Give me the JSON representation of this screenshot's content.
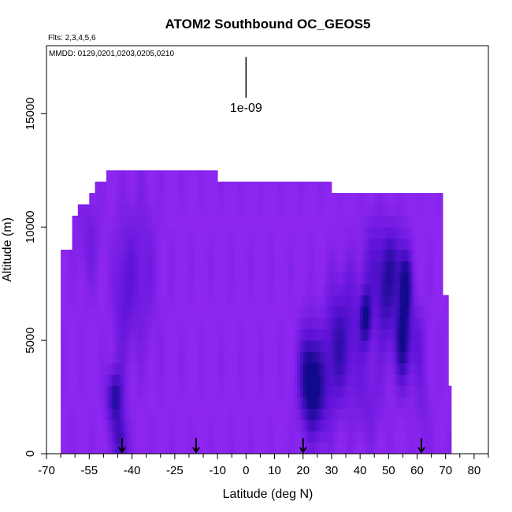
{
  "chart_data": {
    "type": "heatmap",
    "title": "ATOM2 Southbound OC_GEOS5",
    "annotations": {
      "flights": "Flts: 2,3,4,5,6",
      "dates": "MMDD: 0129,0201,0203,0205,0210"
    },
    "xlabel": "Latitude (deg N)",
    "ylabel": "Altitude (m)",
    "xlim": [
      -70,
      85
    ],
    "ylim": [
      0,
      18000
    ],
    "x_ticks_major": [
      -70,
      -55,
      -40,
      -25,
      -10,
      0,
      10,
      20,
      30,
      40,
      50,
      60,
      70,
      80
    ],
    "x_tick_labels": [
      "-70",
      "-55",
      "-40",
      "-25",
      "-10",
      "0",
      "10",
      "20",
      "30",
      "40",
      "50",
      "60",
      "70",
      "80"
    ],
    "x_ticks_minor": [
      -65,
      -60,
      -50,
      -45,
      -35,
      -30,
      -20,
      -15,
      -5,
      5,
      15,
      25,
      35,
      45,
      55,
      65,
      75,
      85
    ],
    "y_ticks": [
      0,
      5000,
      10000,
      15000
    ],
    "y_tick_labels": [
      "0",
      "5000",
      "10000",
      "15000"
    ],
    "scale_bar": {
      "label": "1e-09",
      "x": 0,
      "y_top": 17500,
      "y_bottom": 15700
    },
    "arrow_markers_latitude": [
      -43.5,
      -17.5,
      20,
      61.5
    ],
    "colors": {
      "background": "#8c26f0",
      "low": "#8c26f0",
      "mid": "#5a12d4",
      "high": "#120a8c"
    },
    "profile_top_altitude": [
      {
        "lat_range": [
          -65,
          -61
        ],
        "top": 9000
      },
      {
        "lat_range": [
          -61,
          -59
        ],
        "top": 10500
      },
      {
        "lat_range": [
          -59,
          -55
        ],
        "top": 11000
      },
      {
        "lat_range": [
          -55,
          -53
        ],
        "top": 11500
      },
      {
        "lat_range": [
          -53,
          -49
        ],
        "top": 12000
      },
      {
        "lat_range": [
          -49,
          -10
        ],
        "top": 12500
      },
      {
        "lat_range": [
          -10,
          30
        ],
        "top": 12000
      },
      {
        "lat_range": [
          30,
          69
        ],
        "top": 11500
      },
      {
        "lat_range": [
          69,
          71
        ],
        "top": 7000
      },
      {
        "lat_range": [
          71,
          72
        ],
        "top": 3000
      }
    ],
    "enhancements": [
      {
        "lat": -46,
        "alt": 2500,
        "lat_sd": 2.0,
        "alt_sd": 900,
        "value": 0.85
      },
      {
        "lat": -44,
        "alt": 500,
        "lat_sd": 1.8,
        "alt_sd": 800,
        "value": 0.7
      },
      {
        "lat": -43,
        "alt": 7000,
        "lat_sd": 2.5,
        "alt_sd": 2200,
        "value": 0.35
      },
      {
        "lat": -37,
        "alt": 8000,
        "lat_sd": 4.0,
        "alt_sd": 2500,
        "value": 0.3
      },
      {
        "lat": -55,
        "alt": 9500,
        "lat_sd": 3.0,
        "alt_sd": 1500,
        "value": 0.25
      },
      {
        "lat": 22,
        "alt": 3500,
        "lat_sd": 2.5,
        "alt_sd": 1500,
        "value": 0.9
      },
      {
        "lat": 25,
        "alt": 2500,
        "lat_sd": 3.0,
        "alt_sd": 1500,
        "value": 0.6
      },
      {
        "lat": 31,
        "alt": 4500,
        "lat_sd": 3.0,
        "alt_sd": 1800,
        "value": 0.55
      },
      {
        "lat": 36,
        "alt": 5500,
        "lat_sd": 3.5,
        "alt_sd": 2000,
        "value": 0.45
      },
      {
        "lat": 42,
        "alt": 6000,
        "lat_sd": 1.5,
        "alt_sd": 900,
        "value": 0.9
      },
      {
        "lat": 49,
        "alt": 6500,
        "lat_sd": 2.5,
        "alt_sd": 1500,
        "value": 0.6
      },
      {
        "lat": 55,
        "alt": 5000,
        "lat_sd": 2.0,
        "alt_sd": 1400,
        "value": 0.95
      },
      {
        "lat": 56,
        "alt": 7500,
        "lat_sd": 1.5,
        "alt_sd": 1000,
        "value": 0.85
      },
      {
        "lat": 52,
        "alt": 8500,
        "lat_sd": 3.0,
        "alt_sd": 1200,
        "value": 0.55
      },
      {
        "lat": 45,
        "alt": 8500,
        "lat_sd": 3.0,
        "alt_sd": 1500,
        "value": 0.4
      },
      {
        "lat": 60,
        "alt": 5000,
        "lat_sd": 2.0,
        "alt_sd": 1200,
        "value": 0.35
      },
      {
        "lat": 43,
        "alt": 2500,
        "lat_sd": 4.0,
        "alt_sd": 1500,
        "value": 0.25
      },
      {
        "lat": 62,
        "alt": 2000,
        "lat_sd": 2.0,
        "alt_sd": 1500,
        "value": 0.2
      }
    ]
  }
}
